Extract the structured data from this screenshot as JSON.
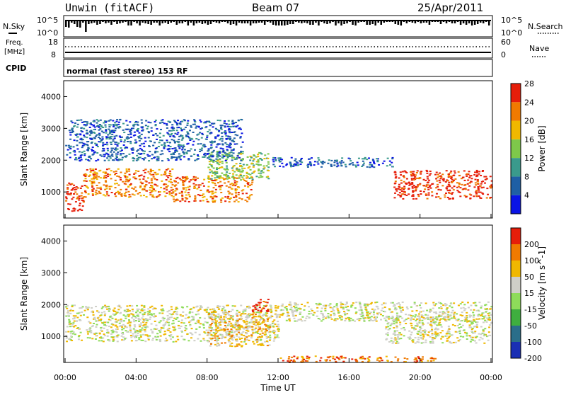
{
  "header": {
    "station": "Unwin (fitACF)",
    "beam": "Beam 07",
    "date": "25/Apr/2011"
  },
  "panels": {
    "nsky": {
      "left_label": "N.Sky",
      "right_label": "N.Search",
      "left_ticks": [
        "10^5",
        "10^0"
      ],
      "right_ticks": [
        "10^5",
        "10^0"
      ]
    },
    "freq": {
      "left_label_line1": "Freq.",
      "left_label_line2": "[MHz]",
      "left_ticks": [
        "18",
        "8"
      ],
      "right_label": "Nave",
      "right_ticks": [
        "60",
        "0"
      ]
    },
    "cpid": {
      "label": "CPID",
      "text": "normal (fast stereo) 153 RF"
    }
  },
  "chart_data": [
    {
      "type": "heatmap",
      "quantity": "Power",
      "ylabel": "Slant Range [km]",
      "yticks": [
        "1000",
        "2000",
        "3000",
        "4000"
      ],
      "ylim": [
        180,
        4500
      ],
      "colorbar_label": "Power [dB]",
      "colorbar_ticks": [
        "4",
        "8",
        "12",
        "16",
        "20",
        "24",
        "28"
      ],
      "colorbar_colors": [
        "#0a14e6",
        "#1f5fa5",
        "#3a9a8c",
        "#7ec84a",
        "#f0b800",
        "#f07a00",
        "#e61e0a"
      ],
      "colorbar_range": [
        0,
        30
      ],
      "bands": [
        {
          "t": [
            "00:00",
            "01:00"
          ],
          "r": [
            400,
            1300
          ],
          "level": 6
        },
        {
          "t": [
            "01:00",
            "06:00"
          ],
          "r": [
            850,
            1750
          ],
          "level": 5
        },
        {
          "t": [
            "06:00",
            "10:30"
          ],
          "r": [
            700,
            1500
          ],
          "level": 5
        },
        {
          "t": [
            "08:00",
            "11:30"
          ],
          "r": [
            1400,
            2300
          ],
          "level": 3
        },
        {
          "t": [
            "11:30",
            "18:30"
          ],
          "r": [
            1800,
            2100
          ],
          "level": 1
        },
        {
          "t": [
            "18:30",
            "24:00"
          ],
          "r": [
            800,
            1700
          ],
          "level": 6
        },
        {
          "t": [
            "00:00",
            "10:00"
          ],
          "r": [
            2000,
            3300
          ],
          "level": 1
        }
      ]
    },
    {
      "type": "heatmap",
      "quantity": "Velocity",
      "ylabel": "Slant Range [km]",
      "yticks": [
        "1000",
        "2000",
        "3000",
        "4000"
      ],
      "ylim": [
        180,
        4500
      ],
      "colorbar_label": "Velocity [m s^-1]",
      "colorbar_ticks": [
        "200",
        "100",
        "50",
        "15",
        "-15",
        "-50",
        "-100",
        "-200"
      ],
      "colorbar_colors": [
        "#1a2fb4",
        "#2a6e8a",
        "#3fae3f",
        "#8edc5a",
        "#cfcfc8",
        "#f0b800",
        "#f07a00",
        "#e61e0a"
      ],
      "colorbar_range": [
        -250,
        250
      ],
      "bands": [
        {
          "t": [
            "00:00",
            "12:00"
          ],
          "r": [
            850,
            2000
          ],
          "level": 4
        },
        {
          "t": [
            "12:00",
            "24:00"
          ],
          "r": [
            1500,
            2100
          ],
          "level": 4
        },
        {
          "t": [
            "18:00",
            "24:00"
          ],
          "r": [
            800,
            1700
          ],
          "level": 4
        },
        {
          "t": [
            "08:00",
            "11:30"
          ],
          "r": [
            700,
            1800
          ],
          "level": 5
        },
        {
          "t": [
            "12:00",
            "21:00"
          ],
          "r": [
            200,
            400
          ],
          "level": 6
        },
        {
          "t": [
            "10:30",
            "11:30"
          ],
          "r": [
            1800,
            2200
          ],
          "level": 7
        }
      ]
    }
  ],
  "xaxis": {
    "ticks": [
      "00:00",
      "04:00",
      "08:00",
      "12:00",
      "16:00",
      "20:00",
      "00:00"
    ],
    "label": "Time UT"
  }
}
